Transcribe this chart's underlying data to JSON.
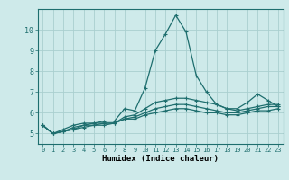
{
  "xlabel": "Humidex (Indice chaleur)",
  "background_color": "#ceeaea",
  "line_color": "#1e6e6e",
  "grid_color": "#aacfcf",
  "x": [
    0,
    1,
    2,
    3,
    4,
    5,
    6,
    7,
    8,
    9,
    10,
    11,
    12,
    13,
    14,
    15,
    16,
    17,
    18,
    19,
    20,
    21,
    22,
    23
  ],
  "lines": [
    [
      5.4,
      5.0,
      5.2,
      5.4,
      5.5,
      5.5,
      5.6,
      5.6,
      6.2,
      6.1,
      7.2,
      9.0,
      9.8,
      10.7,
      9.9,
      7.8,
      7.0,
      6.4,
      6.2,
      6.2,
      6.5,
      6.9,
      6.6,
      6.3
    ],
    [
      5.4,
      5.0,
      5.1,
      5.3,
      5.4,
      5.5,
      5.5,
      5.5,
      5.8,
      5.9,
      6.2,
      6.5,
      6.6,
      6.7,
      6.7,
      6.6,
      6.5,
      6.4,
      6.2,
      6.1,
      6.2,
      6.3,
      6.4,
      6.4
    ],
    [
      5.4,
      5.0,
      5.1,
      5.2,
      5.4,
      5.4,
      5.5,
      5.5,
      5.7,
      5.8,
      6.0,
      6.2,
      6.3,
      6.4,
      6.4,
      6.3,
      6.2,
      6.1,
      6.0,
      6.0,
      6.1,
      6.2,
      6.3,
      6.3
    ],
    [
      5.4,
      5.0,
      5.1,
      5.2,
      5.3,
      5.4,
      5.4,
      5.5,
      5.7,
      5.7,
      5.9,
      6.0,
      6.1,
      6.2,
      6.2,
      6.1,
      6.0,
      6.0,
      5.9,
      5.9,
      6.0,
      6.1,
      6.1,
      6.2
    ]
  ],
  "ylim": [
    4.5,
    11.0
  ],
  "yticks": [
    5,
    6,
    7,
    8,
    9,
    10
  ],
  "xlim": [
    -0.5,
    23.5
  ],
  "xticks": [
    0,
    1,
    2,
    3,
    4,
    5,
    6,
    7,
    8,
    9,
    10,
    11,
    12,
    13,
    14,
    15,
    16,
    17,
    18,
    19,
    20,
    21,
    22,
    23
  ],
  "marker": "+",
  "markersize": 3.5,
  "linewidth": 0.9,
  "tick_fontsize": 5.0,
  "xlabel_fontsize": 6.5
}
